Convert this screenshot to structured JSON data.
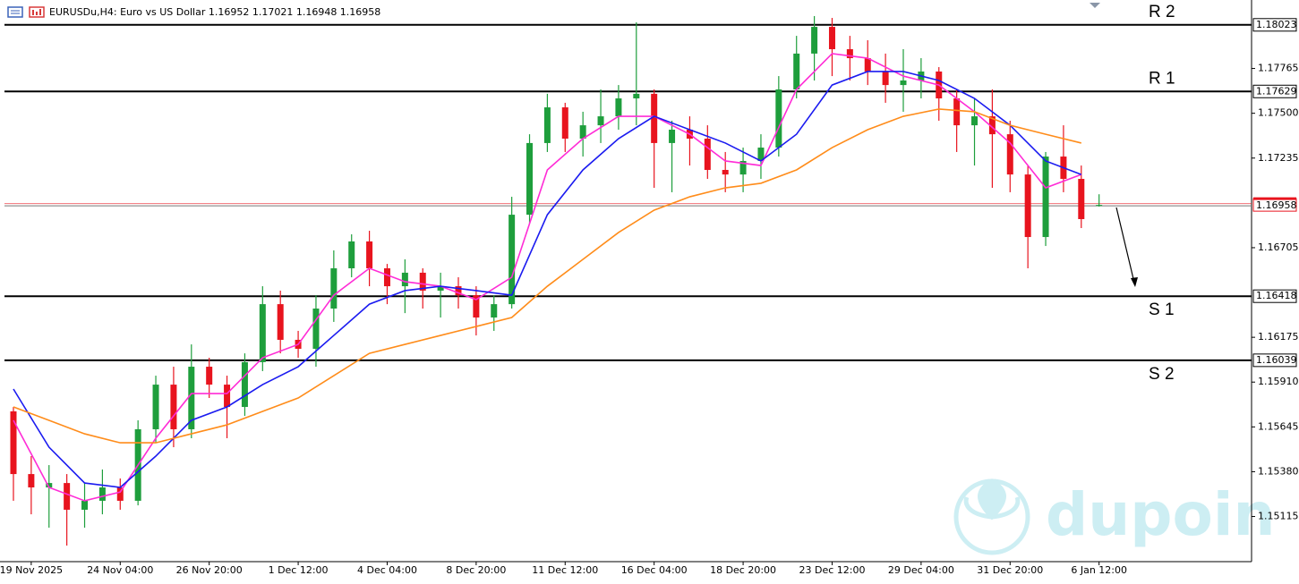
{
  "chart_data": {
    "type": "candlestick",
    "title": "EURUSDu,H4:  Euro vs US Dollar  1.16952 1.17021 1.16948 1.16958",
    "categories": [
      null,
      "19 Nov 2025",
      null,
      null,
      null,
      null,
      "24 Nov 04:00",
      null,
      null,
      null,
      null,
      "26 Nov 20:00",
      null,
      null,
      null,
      null,
      "1 Dec 12:00",
      null,
      null,
      null,
      null,
      "4 Dec 04:00",
      null,
      null,
      null,
      null,
      "8 Dec 20:00",
      null,
      null,
      null,
      null,
      "11 Dec 12:00",
      null,
      null,
      null,
      null,
      "16 Dec 04:00",
      null,
      null,
      null,
      null,
      "18 Dec 20:00",
      null,
      null,
      null,
      null,
      "23 Dec 12:00",
      null,
      null,
      null,
      null,
      "29 Dec 04:00",
      null,
      null,
      null,
      null,
      "31 Dec 20:00",
      null,
      null,
      null,
      null,
      "6 Jan 12:00"
    ],
    "open": [
      1.15737,
      1.15366,
      1.15287,
      1.15313,
      1.15155,
      1.15208,
      1.15287,
      1.15208,
      1.15631,
      1.15895,
      1.15631,
      1.16001,
      1.15895,
      1.15763,
      1.16028,
      1.16371,
      1.1616,
      1.16107,
      1.16345,
      1.16583,
      1.16742,
      1.16583,
      1.16477,
      1.16557,
      1.16451,
      1.16477,
      1.16424,
      1.16292,
      1.16371,
      1.169,
      1.17324,
      1.17535,
      1.1735,
      1.17429,
      1.17482,
      1.17588,
      1.17615,
      1.17324,
      1.17403,
      1.1735,
      1.17165,
      1.17138,
      1.17218,
      1.17297,
      1.17641,
      1.17853,
      1.18011,
      1.17879,
      1.17826,
      1.17747,
      1.17667,
      1.17694,
      1.17747,
      1.17588,
      1.17429,
      1.17482,
      1.17376,
      1.17138,
      1.16768,
      1.17244,
      1.17112,
      1.16952
    ],
    "high": [
      1.15763,
      1.15472,
      1.15419,
      1.15366,
      1.15313,
      1.15393,
      1.1534,
      1.15684,
      1.15948,
      1.16001,
      1.16133,
      1.16054,
      1.15948,
      1.1608,
      1.16477,
      1.16451,
      1.16213,
      1.16424,
      1.16689,
      1.16784,
      1.16805,
      1.16609,
      1.16636,
      1.16583,
      1.16557,
      1.1653,
      1.16477,
      1.16424,
      1.17006,
      1.17376,
      1.17615,
      1.17562,
      1.17509,
      1.17641,
      1.17667,
      1.18038,
      1.17641,
      1.17456,
      1.17482,
      1.17429,
      1.17271,
      1.17297,
      1.17376,
      1.1772,
      1.17958,
      1.18075,
      1.18064,
      1.17958,
      1.17932,
      1.17853,
      1.17879,
      1.17826,
      1.17773,
      1.17641,
      1.17588,
      1.17641,
      1.17456,
      1.17191,
      1.17271,
      1.17429,
      1.17191,
      1.17021
    ],
    "low": [
      1.15208,
      1.15128,
      1.15049,
      1.14943,
      1.15049,
      1.15128,
      1.15155,
      1.15181,
      1.15551,
      1.15525,
      1.15578,
      1.15816,
      1.15578,
      1.1571,
      1.15975,
      1.1608,
      1.16054,
      1.16001,
      1.16266,
      1.1653,
      1.16477,
      1.16371,
      1.16318,
      1.16345,
      1.16292,
      1.16345,
      1.16186,
      1.16213,
      1.16345,
      1.16847,
      1.17271,
      1.17271,
      1.17244,
      1.17324,
      1.17403,
      1.17429,
      1.17059,
      1.17033,
      1.17191,
      1.17112,
      1.17033,
      1.17033,
      1.17112,
      1.17244,
      1.17588,
      1.17694,
      1.1772,
      1.17694,
      1.17667,
      1.17562,
      1.17509,
      1.17588,
      1.17456,
      1.17271,
      1.17191,
      1.17059,
      1.17033,
      1.16583,
      1.16715,
      1.17033,
      1.16821,
      1.16948
    ],
    "close": [
      1.15366,
      1.15287,
      1.15313,
      1.15155,
      1.15208,
      1.15287,
      1.15208,
      1.15631,
      1.15895,
      1.15631,
      1.16001,
      1.15895,
      1.15763,
      1.16028,
      1.16371,
      1.1616,
      1.16107,
      1.16345,
      1.16583,
      1.16742,
      1.16583,
      1.16477,
      1.16557,
      1.16451,
      1.16477,
      1.16424,
      1.16292,
      1.16371,
      1.169,
      1.17324,
      1.17535,
      1.1735,
      1.17429,
      1.17482,
      1.17588,
      1.17615,
      1.17324,
      1.17403,
      1.1735,
      1.17165,
      1.17138,
      1.17218,
      1.17297,
      1.17641,
      1.17853,
      1.18011,
      1.17879,
      1.17826,
      1.17747,
      1.17667,
      1.17694,
      1.17747,
      1.17588,
      1.17429,
      1.17482,
      1.17376,
      1.17138,
      1.16768,
      1.17244,
      1.17112,
      1.16874,
      1.16958
    ],
    "up_color": "#1e9e3c",
    "down_color": "#e8141e",
    "lines": [
      {
        "color": "#ff2cd6",
        "x": [
          0,
          2,
          4,
          6,
          8,
          10,
          12,
          14,
          16,
          18,
          20,
          22,
          24,
          26,
          28,
          30,
          32,
          34,
          36,
          38,
          40,
          42,
          44,
          46,
          48,
          50,
          52,
          54,
          56,
          58,
          60
        ],
        "values": [
          1.15684,
          1.15287,
          1.15208,
          1.1526,
          1.15578,
          1.15842,
          1.15842,
          1.16054,
          1.16133,
          1.16424,
          1.16583,
          1.16504,
          1.16477,
          1.16398,
          1.1653,
          1.17165,
          1.1735,
          1.17482,
          1.17482,
          1.17376,
          1.17218,
          1.17191,
          1.17641,
          1.17853,
          1.17826,
          1.1772,
          1.17667,
          1.17509,
          1.17324,
          1.17059,
          1.17138
        ]
      },
      {
        "color": "#1b1bf0",
        "x": [
          0,
          2,
          4,
          6,
          8,
          10,
          12,
          14,
          16,
          18,
          20,
          22,
          24,
          26,
          28,
          30,
          32,
          34,
          36,
          38,
          40,
          42,
          44,
          46,
          48,
          50,
          52,
          54,
          56,
          58,
          60
        ],
        "values": [
          1.15869,
          1.15525,
          1.15313,
          1.15287,
          1.15472,
          1.15684,
          1.15763,
          1.15895,
          1.16001,
          1.16186,
          1.16371,
          1.16451,
          1.16477,
          1.16451,
          1.16424,
          1.169,
          1.17165,
          1.1735,
          1.17482,
          1.17403,
          1.17324,
          1.17218,
          1.17376,
          1.17667,
          1.17747,
          1.17747,
          1.17694,
          1.17588,
          1.17429,
          1.17218,
          1.17138
        ]
      },
      {
        "color": "#ff8c1a",
        "x": [
          0,
          2,
          4,
          6,
          8,
          10,
          12,
          14,
          16,
          18,
          20,
          22,
          24,
          26,
          28,
          30,
          32,
          34,
          36,
          38,
          40,
          42,
          44,
          46,
          48,
          50,
          52,
          54,
          56,
          58,
          60
        ],
        "values": [
          1.15763,
          1.15684,
          1.15604,
          1.15551,
          1.15551,
          1.15604,
          1.15657,
          1.15737,
          1.15816,
          1.15948,
          1.1608,
          1.16133,
          1.16186,
          1.16239,
          1.16292,
          1.16477,
          1.16636,
          1.16795,
          1.16927,
          1.17006,
          1.17059,
          1.17086,
          1.17165,
          1.17297,
          1.17403,
          1.17482,
          1.17525,
          1.17509,
          1.17429,
          1.17376,
          1.17324
        ]
      }
    ],
    "ylim": [
      1.14848,
      1.1817
    ],
    "yticks": [
      1.17765,
      {
        "value": 1.175,
        "label": "1.17500"
      },
      1.17235,
      1.16705,
      1.16175,
      {
        "value": 1.1591,
        "label": "1.15910"
      },
      1.15645,
      {
        "value": 1.1538,
        "label": "1.15380"
      },
      1.15115
    ],
    "levels": [
      {
        "name": "R 2",
        "value": 1.18023
      },
      {
        "name": "R 1",
        "value": 1.17629
      },
      {
        "name": "S 1",
        "value": 1.16418
      },
      {
        "name": "S 2",
        "value": 1.16039
      }
    ],
    "current_price": {
      "value": 1.16958,
      "color": "#e8141e"
    },
    "watermark": "dupoin"
  }
}
